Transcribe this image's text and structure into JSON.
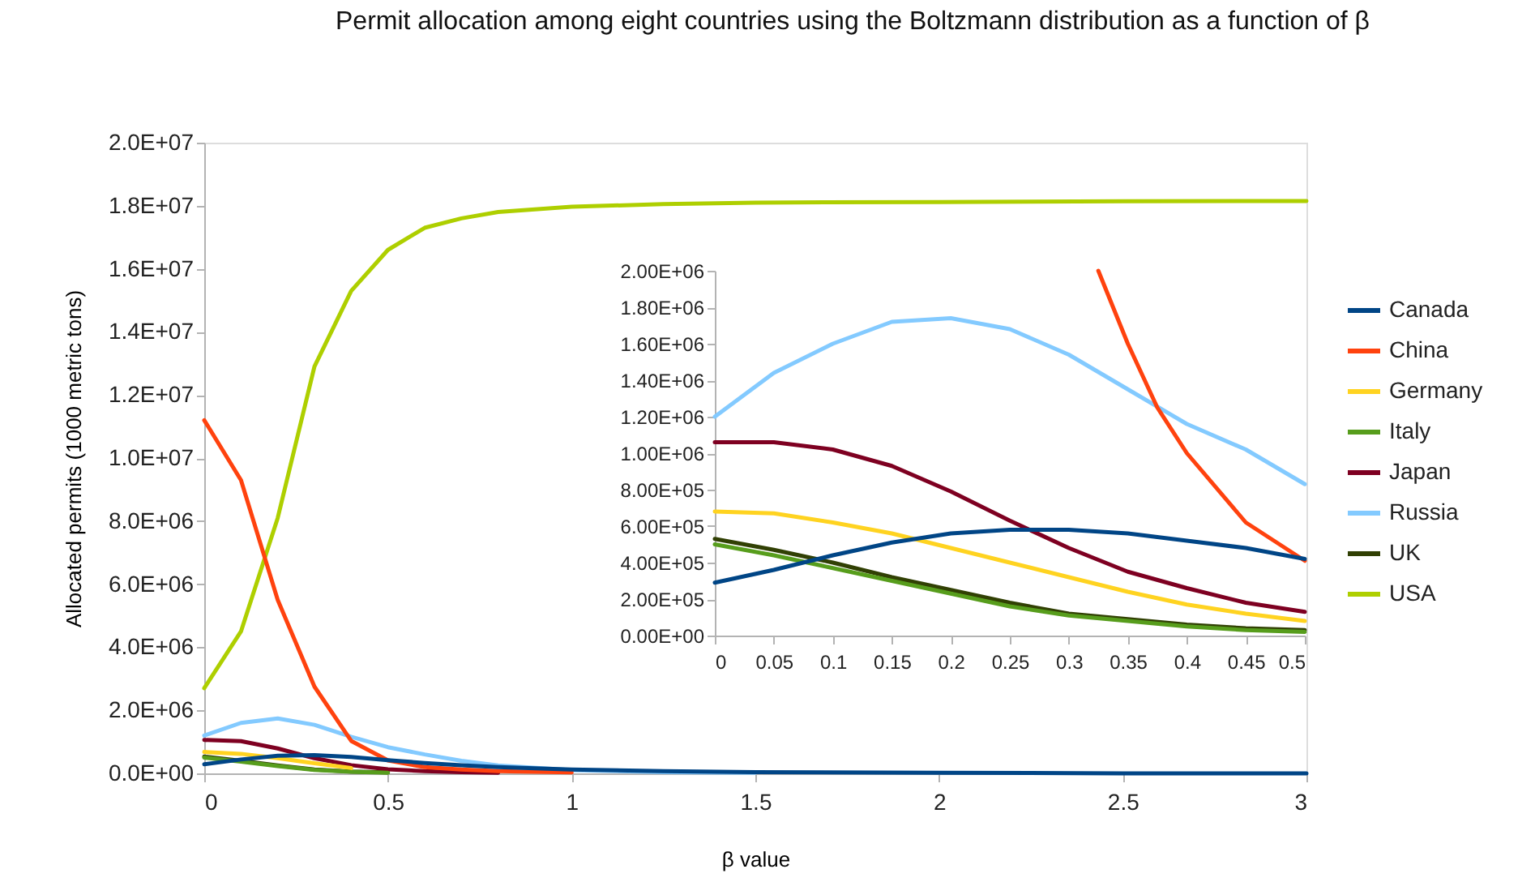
{
  "chart_data": [
    {
      "type": "line",
      "title": "Permit allocation among eight countries using the Boltzmann distribution as a function of β",
      "xlabel": "β value",
      "ylabel": "Allocated permits (1000 metric tons)",
      "legend": "right",
      "x": [
        0,
        0.1,
        0.2,
        0.3,
        0.4,
        0.5,
        0.6,
        0.7,
        0.8,
        1,
        1.25,
        1.5,
        2,
        2.5,
        3
      ],
      "xlim": [
        0,
        3
      ],
      "xticks": [
        0,
        0.5,
        1,
        1.5,
        2,
        2.5,
        3
      ],
      "ylim": [
        0,
        20000000
      ],
      "yticks": [
        {
          "value": 0,
          "label": "0.0E+00"
        },
        {
          "value": 2000000,
          "label": "2.0E+06"
        },
        {
          "value": 4000000,
          "label": "4.0E+06"
        },
        {
          "value": 6000000,
          "label": "6.0E+06"
        },
        {
          "value": 8000000,
          "label": "8.0E+06"
        },
        {
          "value": 10000000,
          "label": "1.0E+07"
        },
        {
          "value": 12000000,
          "label": "1.2E+07"
        },
        {
          "value": 14000000,
          "label": "1.4E+07"
        },
        {
          "value": 16000000,
          "label": "1.6E+07"
        },
        {
          "value": 18000000,
          "label": "1.8E+07"
        },
        {
          "value": 20000000,
          "label": "2.0E+07"
        }
      ],
      "series": [
        {
          "name": "Canada",
          "color": "#004586",
          "values": [
            290000,
            440000,
            560000,
            580000,
            520000,
            420000,
            330000,
            260000,
            200000,
            120000,
            70000,
            40000,
            20000,
            0,
            0
          ]
        },
        {
          "name": "China",
          "color": "#ff420e",
          "values": [
            11200000,
            9300000,
            5500000,
            2750000,
            1030000,
            410000,
            200000,
            120000,
            70000,
            30000,
            null,
            null,
            null,
            null,
            null
          ]
        },
        {
          "name": "Germany",
          "color": "#ffd320",
          "values": [
            680000,
            620000,
            480000,
            320000,
            170000,
            null,
            null,
            null,
            null,
            null,
            null,
            null,
            null,
            null,
            null
          ]
        },
        {
          "name": "Italy",
          "color": "#579d1c",
          "values": [
            500000,
            370000,
            230000,
            110000,
            50000,
            20000,
            null,
            null,
            null,
            null,
            null,
            null,
            null,
            null,
            null
          ]
        },
        {
          "name": "Japan",
          "color": "#7e0021",
          "values": [
            1060000,
            1020000,
            790000,
            480000,
            260000,
            130000,
            70000,
            40000,
            20000,
            null,
            null,
            null,
            null,
            null,
            null
          ]
        },
        {
          "name": "Russia",
          "color": "#83caff",
          "values": [
            1200000,
            1600000,
            1740000,
            1540000,
            1160000,
            830000,
            600000,
            400000,
            250000,
            100000,
            40000,
            20000,
            null,
            null,
            null
          ]
        },
        {
          "name": "UK",
          "color": "#314004",
          "values": [
            530000,
            400000,
            250000,
            120000,
            60000,
            30000,
            null,
            null,
            null,
            null,
            null,
            null,
            null,
            null,
            null
          ]
        },
        {
          "name": "USA",
          "color": "#aecf00",
          "values": [
            2700000,
            4500000,
            8100000,
            12900000,
            15300000,
            16600000,
            17300000,
            17600000,
            17800000,
            17970000,
            18050000,
            18100000,
            18120000,
            18140000,
            18150000
          ]
        }
      ]
    },
    {
      "type": "line",
      "x": [
        0,
        0.05,
        0.1,
        0.15,
        0.2,
        0.25,
        0.3,
        0.35,
        0.4,
        0.45,
        0.5
      ],
      "xlim": [
        0,
        0.5
      ],
      "xticks": [
        0,
        0.05,
        0.1,
        0.15,
        0.2,
        0.25,
        0.3,
        0.35,
        0.4,
        0.45,
        0.5
      ],
      "ylim": [
        0,
        2000000
      ],
      "yticks": [
        {
          "value": 0,
          "label": "0.00E+00"
        },
        {
          "value": 200000,
          "label": "2.00E+05"
        },
        {
          "value": 400000,
          "label": "4.00E+05"
        },
        {
          "value": 600000,
          "label": "6.00E+05"
        },
        {
          "value": 800000,
          "label": "8.00E+05"
        },
        {
          "value": 1000000,
          "label": "1.00E+06"
        },
        {
          "value": 1200000,
          "label": "1.20E+06"
        },
        {
          "value": 1400000,
          "label": "1.40E+06"
        },
        {
          "value": 1600000,
          "label": "1.60E+06"
        },
        {
          "value": 1800000,
          "label": "1.80E+06"
        },
        {
          "value": 2000000,
          "label": "2.00E+06"
        }
      ],
      "series": [
        {
          "color": "#004586",
          "values": [
            290000,
            360000,
            440000,
            510000,
            560000,
            580000,
            580000,
            560000,
            520000,
            480000,
            420000
          ]
        },
        {
          "color": "#ff420e",
          "x": [
            0.325,
            0.35,
            0.375,
            0.4,
            0.45,
            0.5
          ],
          "values": [
            2000000,
            1600000,
            1250000,
            1000000,
            620000,
            410000
          ]
        },
        {
          "color": "#ffd320",
          "values": [
            680000,
            670000,
            620000,
            560000,
            480000,
            400000,
            320000,
            240000,
            170000,
            120000,
            80000
          ]
        },
        {
          "color": "#579d1c",
          "values": [
            500000,
            440000,
            370000,
            300000,
            230000,
            160000,
            110000,
            80000,
            50000,
            30000,
            20000
          ]
        },
        {
          "color": "#7e0021",
          "values": [
            1060000,
            1060000,
            1020000,
            930000,
            790000,
            630000,
            480000,
            350000,
            260000,
            180000,
            130000
          ]
        },
        {
          "color": "#83caff",
          "values": [
            1200000,
            1440000,
            1600000,
            1720000,
            1740000,
            1680000,
            1540000,
            1350000,
            1160000,
            1020000,
            830000
          ]
        },
        {
          "color": "#314004",
          "values": [
            530000,
            470000,
            400000,
            320000,
            250000,
            180000,
            120000,
            90000,
            60000,
            40000,
            30000
          ]
        }
      ]
    }
  ]
}
